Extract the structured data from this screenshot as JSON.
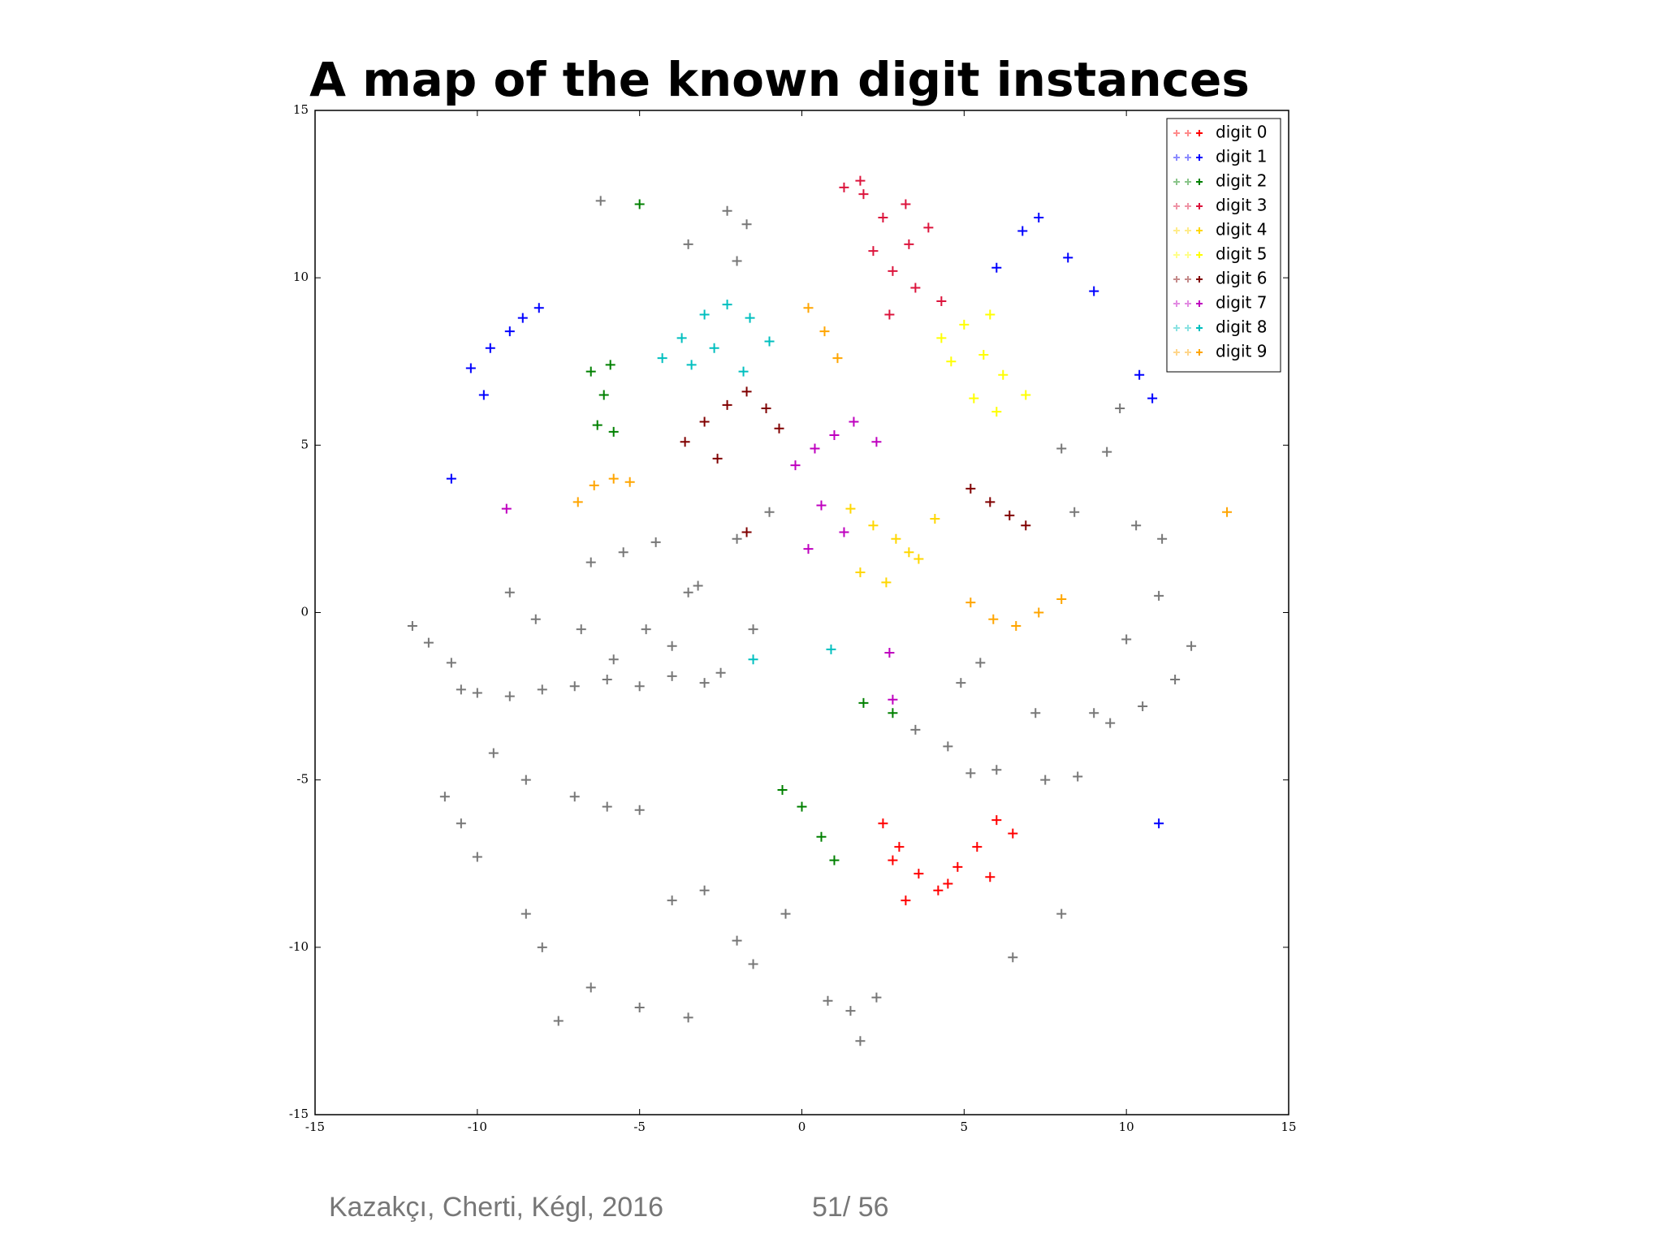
{
  "chart_data": {
    "type": "scatter",
    "title": "A map of the known digit instances",
    "xlim": [
      -15,
      15
    ],
    "ylim": [
      -15,
      15
    ],
    "xticks": [
      -15,
      -10,
      -5,
      0,
      5,
      10,
      15
    ],
    "yticks": [
      -15,
      -10,
      -5,
      0,
      5,
      10,
      15
    ],
    "legend": "upper right",
    "marker": "+",
    "series": [
      {
        "name": "digit 0",
        "color": "#ff0000",
        "x": [
          2.5,
          3,
          3.6,
          4.2,
          4.8,
          5.4,
          6,
          6.5,
          3.2,
          4.5,
          5.8,
          2.8
        ],
        "y": [
          -6.3,
          -7,
          -7.8,
          -8.3,
          -7.6,
          -7,
          -6.2,
          -6.6,
          -8.6,
          -8.1,
          -7.9,
          -7.4
        ]
      },
      {
        "name": "digit 1",
        "color": "#0000ff",
        "x": [
          -10.2,
          -9.6,
          -9,
          -8.6,
          -8.1,
          -9.8,
          6,
          6.8,
          7.3,
          8.2,
          9,
          10.4,
          10.8,
          11,
          -10.8
        ],
        "y": [
          7.3,
          7.9,
          8.4,
          8.8,
          9.1,
          6.5,
          10.3,
          11.4,
          11.8,
          10.6,
          9.6,
          7.1,
          6.4,
          -6.3,
          4
        ]
      },
      {
        "name": "digit 2",
        "color": "#008000",
        "x": [
          -6.5,
          -6.1,
          -5.8,
          -6.3,
          -5.9,
          -0.6,
          0,
          0.6,
          1,
          2.8,
          -5,
          1.9
        ],
        "y": [
          7.2,
          6.5,
          5.4,
          5.6,
          7.4,
          -5.3,
          -5.8,
          -6.7,
          -7.4,
          -3,
          12.2,
          -2.7
        ]
      },
      {
        "name": "digit 3",
        "color": "#dc143c",
        "x": [
          1.3,
          1.9,
          2.5,
          3.2,
          3.9,
          2.2,
          2.8,
          3.5,
          4.3,
          2.7,
          3.3,
          1.8
        ],
        "y": [
          12.7,
          12.5,
          11.8,
          12.2,
          11.5,
          10.8,
          10.2,
          9.7,
          9.3,
          8.9,
          11,
          12.9
        ]
      },
      {
        "name": "digit 4",
        "color": "#ffd700",
        "x": [
          1.5,
          2.2,
          2.9,
          3.6,
          1.8,
          2.6,
          3.3,
          4.1
        ],
        "y": [
          3.1,
          2.6,
          2.2,
          1.6,
          1.2,
          0.9,
          1.8,
          2.8
        ]
      },
      {
        "name": "digit 5",
        "color": "#ffff00",
        "x": [
          4.3,
          5,
          5.6,
          6.2,
          6.9,
          5.3,
          6,
          5.8,
          4.6
        ],
        "y": [
          8.2,
          8.6,
          7.7,
          7.1,
          6.5,
          6.4,
          6,
          8.9,
          7.5
        ]
      },
      {
        "name": "digit 6",
        "color": "#800000",
        "x": [
          -3.6,
          -3,
          -2.3,
          -1.7,
          -1.1,
          -0.7,
          -2.6,
          5.2,
          5.8,
          6.4,
          6.9,
          -1.7
        ],
        "y": [
          5.1,
          5.7,
          6.2,
          6.6,
          6.1,
          5.5,
          4.6,
          3.7,
          3.3,
          2.9,
          2.6,
          2.4
        ]
      },
      {
        "name": "digit 7",
        "color": "#bf00bf",
        "x": [
          -0.2,
          0.4,
          1,
          1.6,
          2.3,
          0.6,
          1.3,
          0.2,
          2.7,
          2.8,
          -9.1
        ],
        "y": [
          4.4,
          4.9,
          5.3,
          5.7,
          5.1,
          3.2,
          2.4,
          1.9,
          -1.2,
          -2.6,
          3.1
        ]
      },
      {
        "name": "digit 8",
        "color": "#00bfbf",
        "x": [
          -4.3,
          -3.7,
          -3,
          -2.3,
          -1.6,
          -1,
          -3.4,
          -2.7,
          -1.8,
          -1.5,
          0.9
        ],
        "y": [
          7.6,
          8.2,
          8.9,
          9.2,
          8.8,
          8.1,
          7.4,
          7.9,
          7.2,
          -1.4,
          -1.1
        ]
      },
      {
        "name": "digit 9",
        "color": "#ffa500",
        "x": [
          -6.9,
          -6.4,
          -5.8,
          -5.3,
          0.2,
          0.7,
          1.1,
          5.2,
          5.9,
          6.6,
          7.3,
          8,
          13.1
        ],
        "y": [
          3.3,
          3.8,
          4,
          3.9,
          9.1,
          8.4,
          7.6,
          0.3,
          -0.2,
          -0.4,
          0,
          0.4,
          3
        ]
      },
      {
        "color": "#777777",
        "x": [
          -10.5,
          -10,
          -9,
          -8,
          -7,
          -6,
          -5,
          -4,
          -3,
          -11.5,
          -12,
          -10.8,
          -9.5,
          -8.5,
          -11,
          -10.5,
          -10,
          -6.5,
          -5.5,
          -4.5,
          -3.5,
          -4.8,
          -4,
          -3.2,
          -2,
          -1,
          -1.5,
          -2.5,
          -7,
          -6,
          -5,
          -8.5,
          -8,
          -4,
          -3,
          -2,
          0.8,
          1.5,
          2.3,
          1.8,
          3.5,
          4.5,
          5.2,
          6,
          7.5,
          8.5,
          9.5,
          10.5,
          11.5,
          12,
          9,
          10,
          11,
          7.2,
          8,
          6.5,
          -6.5,
          -5,
          -3.5,
          -7.5,
          -1.5,
          -0.5,
          -6.2,
          -2.3,
          -1.7,
          -2,
          -3.5,
          10.3,
          11.1,
          8.4,
          -9,
          -8.2,
          -6.8,
          -5.8,
          8,
          9.8,
          9.4,
          4.9,
          5.5
        ],
        "y": [
          -2.3,
          -2.4,
          -2.5,
          -2.3,
          -2.2,
          -2,
          -2.2,
          -1.9,
          -2.1,
          -0.9,
          -0.4,
          -1.5,
          -4.2,
          -5,
          -5.5,
          -6.3,
          -7.3,
          1.5,
          1.8,
          2.1,
          0.6,
          -0.5,
          -1,
          0.8,
          2.2,
          3,
          -0.5,
          -1.8,
          -5.5,
          -5.8,
          -5.9,
          -9,
          -10,
          -8.6,
          -8.3,
          -9.8,
          -11.6,
          -11.9,
          -11.5,
          -12.8,
          -3.5,
          -4,
          -4.8,
          -4.7,
          -5,
          -4.9,
          -3.3,
          -2.8,
          -2,
          -1,
          -3,
          -0.8,
          0.5,
          -3,
          -9,
          -10.3,
          -11.2,
          -11.8,
          -12.1,
          -12.2,
          -10.5,
          -9,
          12.3,
          12,
          11.6,
          10.5,
          11,
          2.6,
          2.2,
          3,
          0.6,
          -0.2,
          -0.5,
          -1.4,
          4.9,
          6.1,
          4.8,
          -2.1,
          -1.5
        ]
      }
    ]
  },
  "footer": {
    "citation": "Kazakçı, Cherti, Kégl, 2016",
    "page": "51/ 56"
  }
}
